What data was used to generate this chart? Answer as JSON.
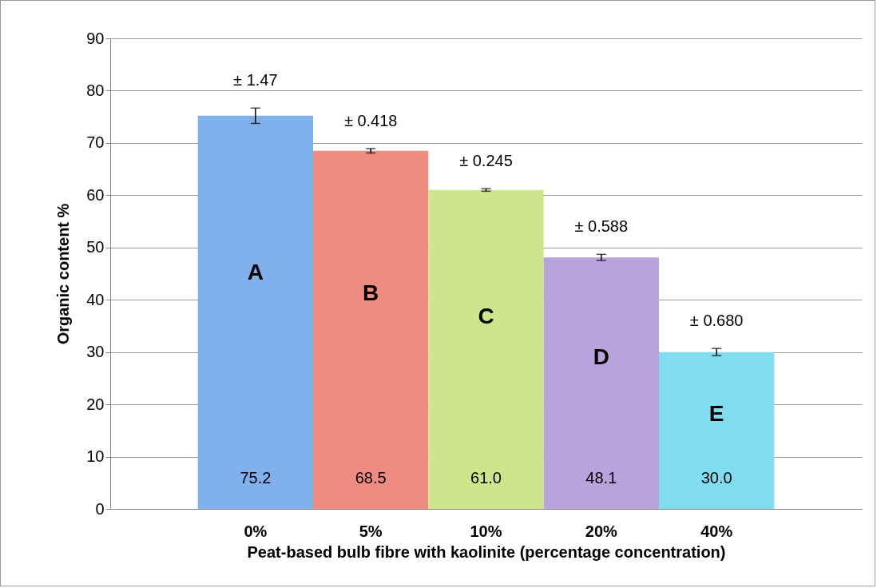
{
  "chart_data": {
    "type": "bar",
    "xlabel": "Peat-based bulb fibre with kaolinite (percentage concentration)",
    "ylabel": "Organic content %",
    "categories": [
      "0%",
      "5%",
      "10%",
      "20%",
      "40%"
    ],
    "values": [
      75.2,
      68.5,
      61.0,
      48.1,
      30.0
    ],
    "value_labels": [
      "75.2",
      "68.5",
      "61.0",
      "48.1",
      "30.0"
    ],
    "colors": [
      "#80b1ec",
      "#ef8c82",
      "#cde68c",
      "#b9a3dc",
      "#80dcef"
    ],
    "errors": [
      1.47,
      0.418,
      0.245,
      0.588,
      0.68
    ],
    "ylim": [
      0,
      90
    ],
    "yticks": [
      0,
      10,
      20,
      30,
      40,
      50,
      60,
      70,
      80,
      90
    ],
    "grid": "y",
    "annotations": [
      "± 1.47",
      "± 0.418",
      "± 0.245",
      "± 0.588",
      "± 0.680",
      "A",
      "B",
      "C",
      "D",
      "E"
    ]
  }
}
